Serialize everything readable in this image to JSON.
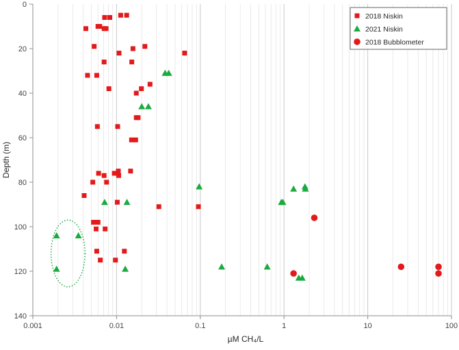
{
  "chart_data": {
    "type": "scatter",
    "title": "",
    "xlabel": "µM CH₄/L",
    "ylabel": "Depth (m)",
    "x_scale": "log",
    "xlim": [
      0.001,
      100
    ],
    "ylim": [
      0,
      140
    ],
    "y_reversed": true,
    "x_ticks": [
      "0.001",
      "0.01",
      "0.1",
      "1",
      "10",
      "100"
    ],
    "y_ticks": [
      "0",
      "20",
      "40",
      "60",
      "80",
      "100",
      "120",
      "140"
    ],
    "grid": "vertical log minor and major gridlines",
    "legend_position": "top-right",
    "series": [
      {
        "name": "2018 Niskin",
        "marker": "square",
        "color": "#e31a1c",
        "points": [
          [
            0.0072,
            6
          ],
          [
            0.0083,
            6
          ],
          [
            0.0112,
            5
          ],
          [
            0.0132,
            5
          ],
          [
            0.0043,
            11
          ],
          [
            0.006,
            10
          ],
          [
            0.0063,
            10
          ],
          [
            0.0071,
            11
          ],
          [
            0.0075,
            11
          ],
          [
            0.0054,
            19
          ],
          [
            0.0157,
            20
          ],
          [
            0.0218,
            19
          ],
          [
            0.0107,
            22
          ],
          [
            0.065,
            22
          ],
          [
            0.0071,
            26
          ],
          [
            0.0152,
            26
          ],
          [
            0.0045,
            32
          ],
          [
            0.0058,
            32
          ],
          [
            0.0081,
            38
          ],
          [
            0.0198,
            38
          ],
          [
            0.0251,
            36
          ],
          [
            0.0172,
            40
          ],
          [
            0.0172,
            51
          ],
          [
            0.0181,
            51
          ],
          [
            0.0059,
            55
          ],
          [
            0.0103,
            55
          ],
          [
            0.0151,
            61
          ],
          [
            0.0169,
            61
          ],
          [
            0.0061,
            76
          ],
          [
            0.0071,
            77
          ],
          [
            0.0094,
            76
          ],
          [
            0.0105,
            75
          ],
          [
            0.0106,
            77
          ],
          [
            0.0147,
            75
          ],
          [
            0.0052,
            80
          ],
          [
            0.0076,
            80
          ],
          [
            0.0041,
            86
          ],
          [
            0.0102,
            89
          ],
          [
            0.032,
            91
          ],
          [
            0.095,
            91
          ],
          [
            0.0053,
            98
          ],
          [
            0.006,
            98
          ],
          [
            0.0057,
            101
          ],
          [
            0.0073,
            101
          ],
          [
            0.0058,
            111
          ],
          [
            0.0124,
            111
          ],
          [
            0.0064,
            115
          ],
          [
            0.0097,
            115
          ]
        ]
      },
      {
        "name": "2021 Niskin",
        "marker": "triangle",
        "color": "#1aab40",
        "points": [
          [
            0.038,
            31
          ],
          [
            0.042,
            31
          ],
          [
            0.02,
            46
          ],
          [
            0.024,
            46
          ],
          [
            0.097,
            82
          ],
          [
            1.3,
            83
          ],
          [
            1.78,
            82
          ],
          [
            1.8,
            83
          ],
          [
            0.0072,
            89
          ],
          [
            0.0133,
            89
          ],
          [
            0.93,
            89
          ],
          [
            0.97,
            89
          ],
          [
            0.00192,
            104
          ],
          [
            0.0035,
            104
          ],
          [
            0.00192,
            119
          ],
          [
            0.0127,
            119
          ],
          [
            0.18,
            118
          ],
          [
            0.63,
            118
          ],
          [
            1.5,
            123
          ],
          [
            1.65,
            123
          ]
        ]
      },
      {
        "name": "2018 Bubblometer",
        "marker": "circle",
        "color": "#e31a1c",
        "points": [
          [
            2.3,
            96
          ],
          [
            1.3,
            121
          ],
          [
            25,
            118
          ],
          [
            70,
            118
          ],
          [
            70,
            121
          ]
        ]
      }
    ],
    "annotations": [
      {
        "type": "dotted-ellipse",
        "color": "#1aab40",
        "x_center": 0.0025,
        "y_center": 111,
        "x_range": [
          0.00165,
          0.0042
        ],
        "y_range": [
          97,
          127
        ]
      }
    ]
  }
}
